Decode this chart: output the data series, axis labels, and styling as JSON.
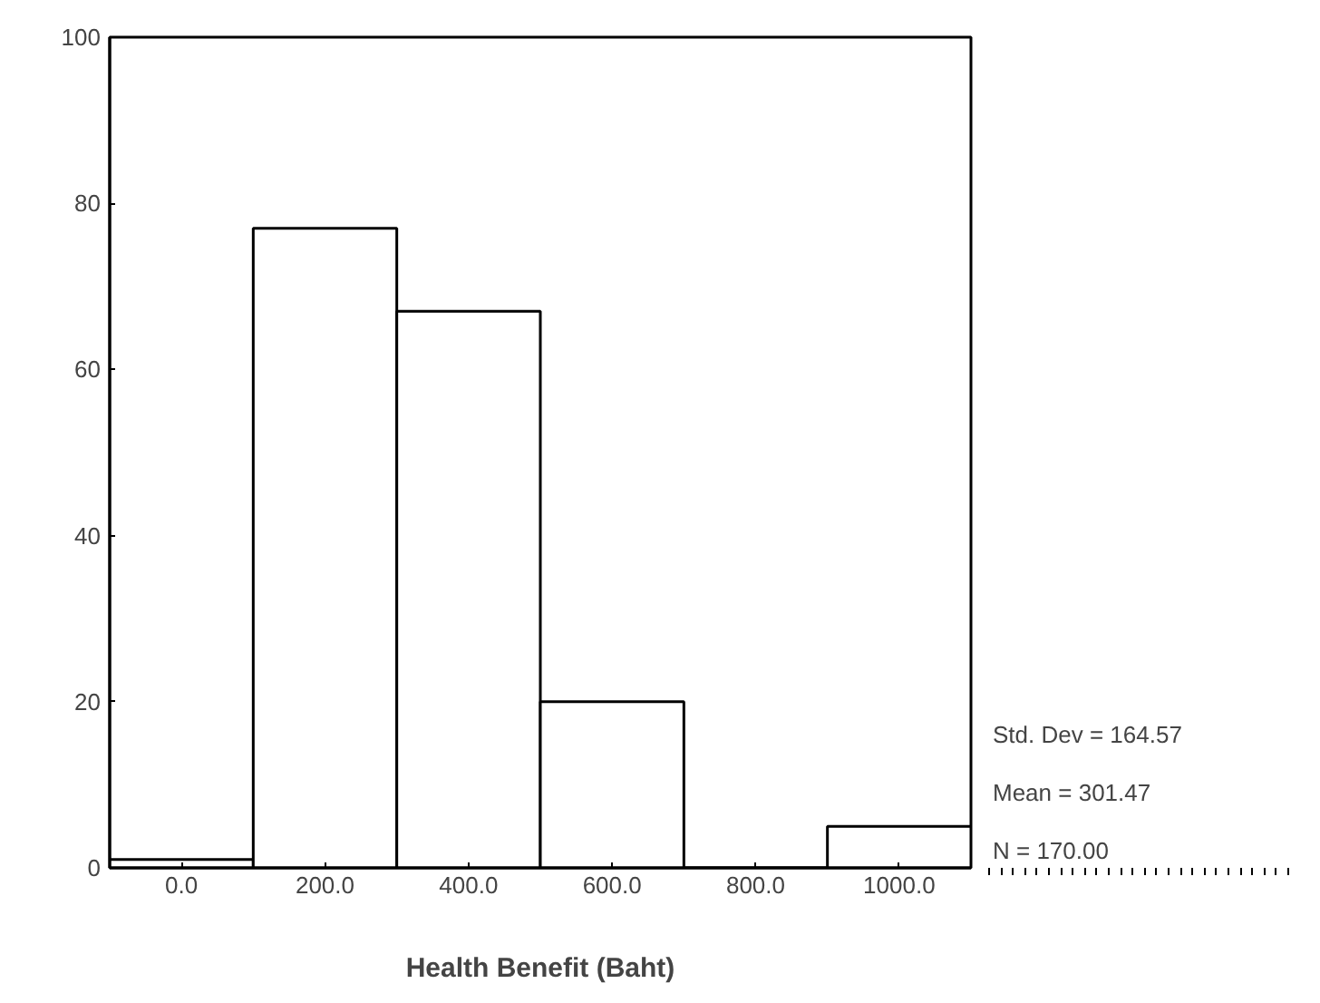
{
  "chart_data": {
    "type": "histogram",
    "xlabel": "Health Benefit (Baht)",
    "bins": [
      -100,
      100,
      300,
      500,
      700,
      900,
      1100
    ],
    "values": [
      1,
      77,
      67,
      20,
      0,
      5
    ],
    "color": "#ffffff",
    "xlim": [
      -100,
      1100
    ],
    "ylim": [
      0,
      100
    ],
    "xticks": [
      {
        "value": 0,
        "label": "0.0"
      },
      {
        "value": 200,
        "label": "200.0"
      },
      {
        "value": 400,
        "label": "400.0"
      },
      {
        "value": 600,
        "label": "600.0"
      },
      {
        "value": 800,
        "label": "800.0"
      },
      {
        "value": 1000,
        "label": "1000.0"
      }
    ],
    "yticks": [
      0,
      20,
      40,
      60,
      80,
      100
    ],
    "grid": false,
    "annotations": [
      "Std. Dev = 164.57",
      "Mean = 301.47",
      "N = 170.00"
    ]
  }
}
